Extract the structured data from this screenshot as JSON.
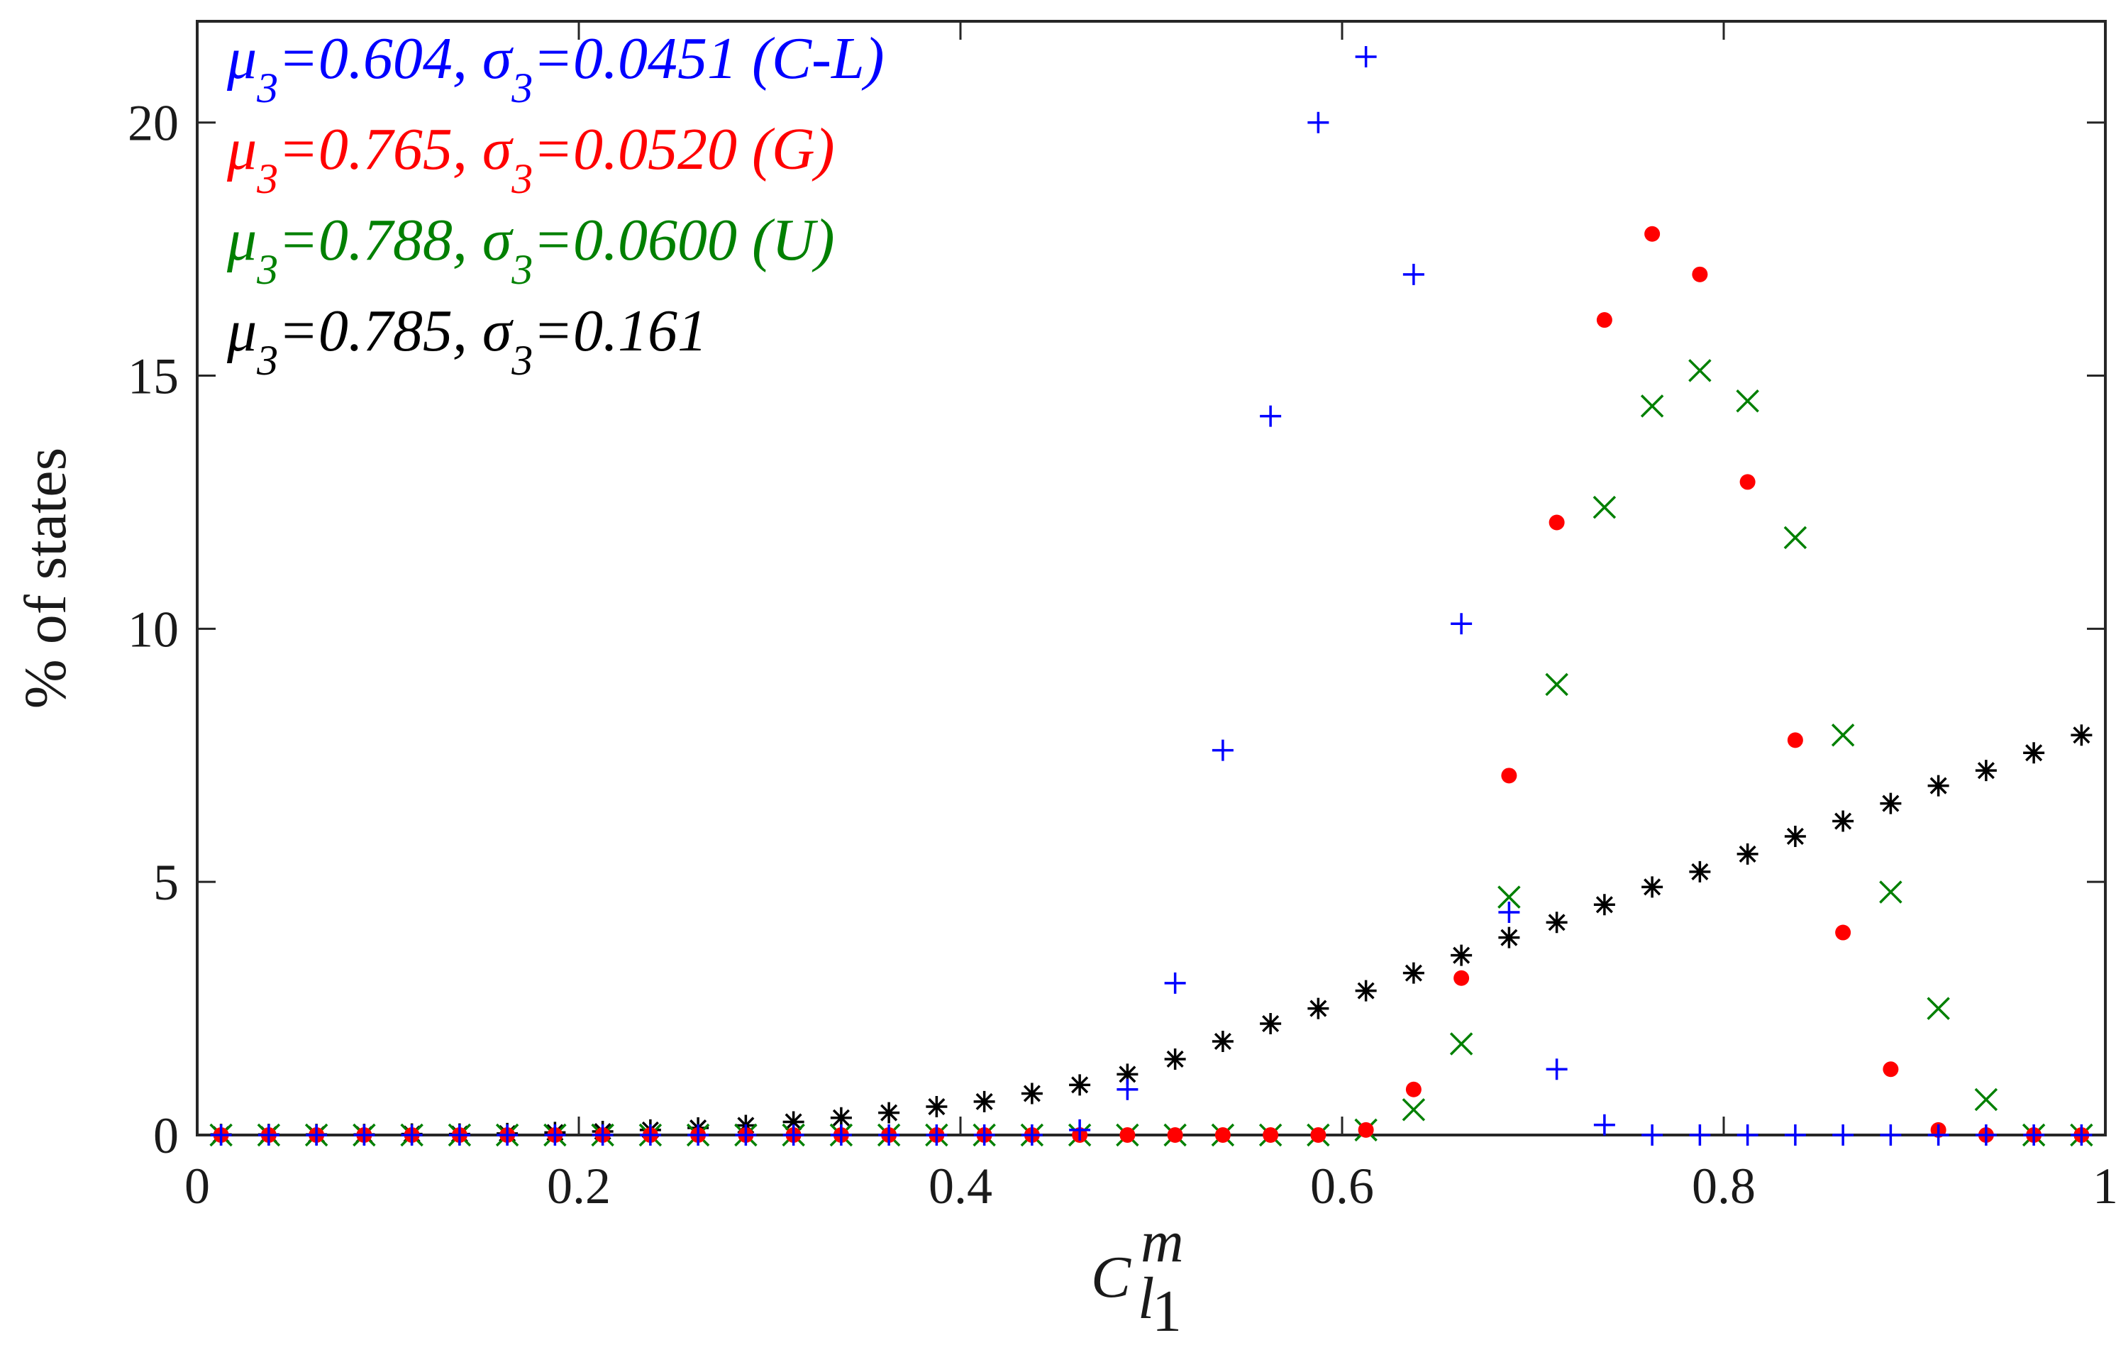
{
  "chart_data": {
    "type": "scatter",
    "title": "",
    "xlabel": "",
    "xlabel_base": "C",
    "xlabel_sup": "m",
    "xlabel_sub": "l",
    "xlabel_subsub": "1",
    "ylabel": "% of states",
    "xlim": [
      0,
      1
    ],
    "ylim": [
      0,
      22
    ],
    "xticks": [
      0,
      0.2,
      0.4,
      0.6,
      0.8,
      1
    ],
    "xtick_labels": [
      "0",
      "0.2",
      "0.4",
      "0.6",
      "0.8",
      "1"
    ],
    "yticks": [
      0,
      5,
      10,
      15,
      20
    ],
    "ytick_labels": [
      "0",
      "5",
      "10",
      "15",
      "20"
    ],
    "grid": false,
    "legend_placement": "top-left",
    "x": [
      0.0125,
      0.0375,
      0.0625,
      0.0875,
      0.1125,
      0.1375,
      0.1625,
      0.1875,
      0.2125,
      0.2375,
      0.2625,
      0.2875,
      0.3125,
      0.3375,
      0.3625,
      0.3875,
      0.4125,
      0.4375,
      0.4625,
      0.4875,
      0.5125,
      0.5375,
      0.5625,
      0.5875,
      0.6125,
      0.6375,
      0.6625,
      0.6875,
      0.7125,
      0.7375,
      0.7625,
      0.7875,
      0.8125,
      0.8375,
      0.8625,
      0.8875,
      0.9125,
      0.9375,
      0.9625,
      0.9875
    ],
    "series": [
      {
        "name": "C-L",
        "marker": "plus",
        "color": "#0000ff",
        "legend": {
          "mu_sym": "μ",
          "mu_sub": "3",
          "mu_val": "=0.604, ",
          "sigma_sym": "σ",
          "sigma_sub": "3",
          "sigma_val": "=0.0451 (C-L)"
        },
        "values": [
          0,
          0,
          0,
          0,
          0,
          0,
          0,
          0,
          0,
          0,
          0,
          0,
          0,
          0,
          0,
          0,
          0,
          0,
          0.1,
          0.9,
          3.0,
          7.6,
          14.2,
          20.0,
          21.3,
          17.0,
          10.1,
          4.4,
          1.3,
          0.2,
          0,
          0,
          0,
          0,
          0,
          0,
          0,
          0,
          0,
          0
        ]
      },
      {
        "name": "G",
        "marker": "dot",
        "color": "#ff0000",
        "legend": {
          "mu_sym": "μ",
          "mu_sub": "3",
          "mu_val": "=0.765, ",
          "sigma_sym": "σ",
          "sigma_sub": "3",
          "sigma_val": "=0.0520 (G)"
        },
        "values": [
          0,
          0,
          0,
          0,
          0,
          0,
          0,
          0,
          0,
          0,
          0,
          0,
          0,
          0,
          0,
          0,
          0,
          0,
          0,
          0,
          0,
          0,
          0,
          0,
          0.1,
          0.9,
          3.1,
          7.1,
          12.1,
          16.1,
          17.8,
          17.0,
          12.9,
          7.8,
          4.0,
          1.3,
          0.1,
          0,
          0,
          0
        ]
      },
      {
        "name": "U",
        "marker": "cross",
        "color": "#008000",
        "legend": {
          "mu_sym": "μ",
          "mu_sub": "3",
          "mu_val": "=0.788, ",
          "sigma_sym": "σ",
          "sigma_sub": "3",
          "sigma_val": "=0.0600 (U)"
        },
        "values": [
          0,
          0,
          0,
          0,
          0,
          0,
          0,
          0,
          0,
          0,
          0,
          0,
          0,
          0,
          0,
          0,
          0,
          0,
          0,
          0,
          0,
          0,
          0,
          0,
          0.1,
          0.5,
          1.8,
          4.7,
          8.9,
          12.4,
          14.4,
          15.1,
          14.5,
          11.8,
          7.9,
          4.8,
          2.5,
          0.7,
          0,
          0
        ]
      },
      {
        "name": "",
        "marker": "asterisk",
        "color": "#000000",
        "legend": {
          "mu_sym": "μ",
          "mu_sub": "3",
          "mu_val": "=0.785, ",
          "sigma_sym": "σ",
          "sigma_sub": "3",
          "sigma_val": "=0.161"
        },
        "values": [
          0.01,
          0.01,
          0.01,
          0.01,
          0.02,
          0.02,
          0.03,
          0.05,
          0.07,
          0.1,
          0.14,
          0.19,
          0.26,
          0.34,
          0.44,
          0.56,
          0.66,
          0.82,
          0.99,
          1.2,
          1.5,
          1.85,
          2.2,
          2.5,
          2.85,
          3.2,
          3.55,
          3.9,
          4.2,
          4.55,
          4.9,
          5.2,
          5.55,
          5.9,
          6.2,
          6.55,
          6.9,
          7.2,
          7.55,
          7.9
        ]
      }
    ]
  }
}
